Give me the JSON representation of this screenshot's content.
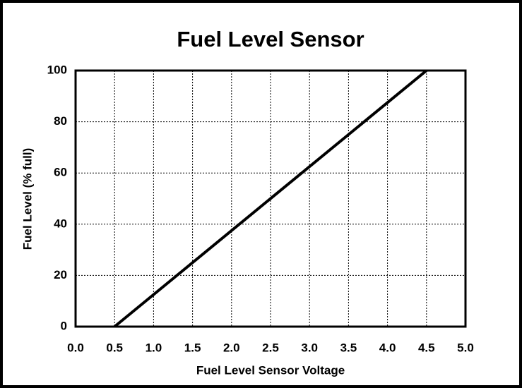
{
  "chart_data": {
    "type": "line",
    "title": "Fuel Level Sensor",
    "xlabel": "Fuel Level Sensor Voltage",
    "ylabel": "Fuel Level (% full)",
    "x": [
      0.5,
      4.5
    ],
    "values": [
      0,
      100
    ],
    "color": "#000000",
    "xlim": [
      0,
      5
    ],
    "xticks": [
      {
        "value": 0,
        "label": "0.0"
      },
      0.5,
      {
        "value": 1,
        "label": "1.0"
      },
      1.5,
      {
        "value": 2,
        "label": "2.0"
      },
      2.5,
      {
        "value": 3,
        "label": "3.0"
      },
      3.5,
      {
        "value": 4,
        "label": "4.0"
      },
      4.5,
      {
        "value": 5,
        "label": "5.0"
      }
    ],
    "ylim": [
      0,
      100
    ],
    "yticks": [
      0,
      20,
      40,
      60,
      80,
      100
    ],
    "grid": true
  }
}
